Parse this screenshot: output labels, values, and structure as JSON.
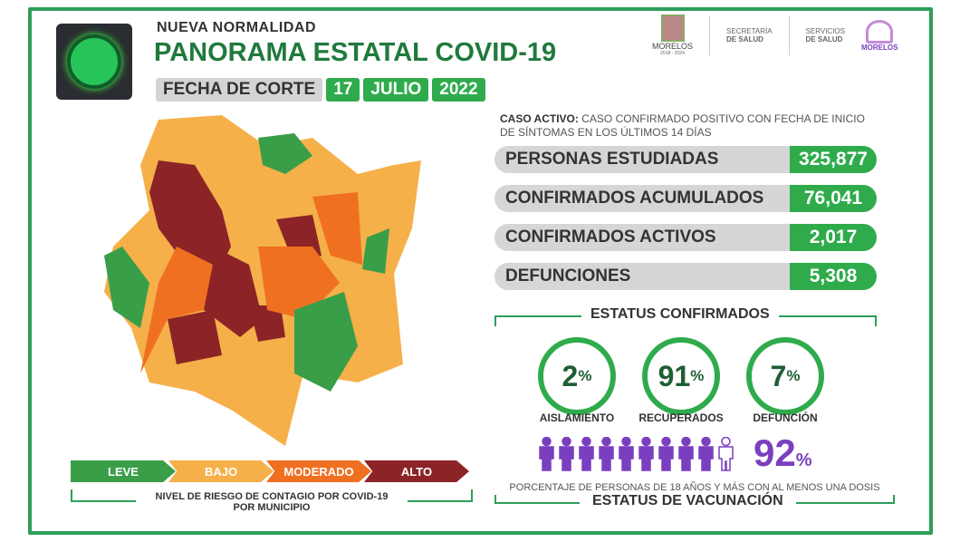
{
  "header": {
    "subtitle": "NUEVA NORMALIDAD",
    "title": "PANORAMA ESTATAL COVID-19",
    "date_label": "FECHA DE CORTE",
    "day": "17",
    "month": "JULIO",
    "year": "2022"
  },
  "logos": {
    "state": "MORELOS",
    "state_years": "2018 - 2024",
    "secretaria_1": "SECRETARÍA",
    "secretaria_2": "DE SALUD",
    "servicios_1": "SERVICIOS",
    "servicios_2": "DE SALUD",
    "brand": "MORELOS"
  },
  "definition": {
    "term": "CASO ACTIVO:",
    "text": " CASO CONFIRMADO POSITIVO CON FECHA DE INICIO DE SÍNTOMAS EN LOS ÚLTIMOS 14 DÍAS"
  },
  "stats": [
    {
      "label": "PERSONAS ESTUDIADAS",
      "value": "325,877"
    },
    {
      "label": "CONFIRMADOS ACUMULADOS",
      "value": "76,041"
    },
    {
      "label": "CONFIRMADOS ACTIVOS",
      "value": "2,017"
    },
    {
      "label": "DEFUNCIONES",
      "value": "5,308"
    }
  ],
  "estatus": {
    "title": "ESTATUS CONFIRMADOS",
    "items": [
      {
        "value": "2",
        "unit": "%",
        "label": "AISLAMIENTO"
      },
      {
        "value": "91",
        "unit": "%",
        "label": "RECUPERADOS"
      },
      {
        "value": "7",
        "unit": "%",
        "label": "DEFUNCIÓN"
      }
    ]
  },
  "vacunacion": {
    "value": "92",
    "unit": "%",
    "description": "PORCENTAJE DE PERSONAS DE 18 AÑOS Y MÁS CON AL MENOS UNA DOSIS",
    "title": "ESTATUS DE VACUNACIÓN",
    "filled_fraction": 0.92,
    "color": "#7a3fbf"
  },
  "legend": {
    "items": [
      {
        "label": "LEVE",
        "color": "#3a9e48"
      },
      {
        "label": "BAJO",
        "color": "#f5b04a"
      },
      {
        "label": "MODERADO",
        "color": "#f07022"
      },
      {
        "label": "ALTO",
        "color": "#8c2427"
      }
    ],
    "caption_1": "NIVEL DE RIESGO DE CONTAGIO POR ",
    "caption_bold": "COVID-19",
    "caption_2": "POR MUNICIPIO"
  }
}
